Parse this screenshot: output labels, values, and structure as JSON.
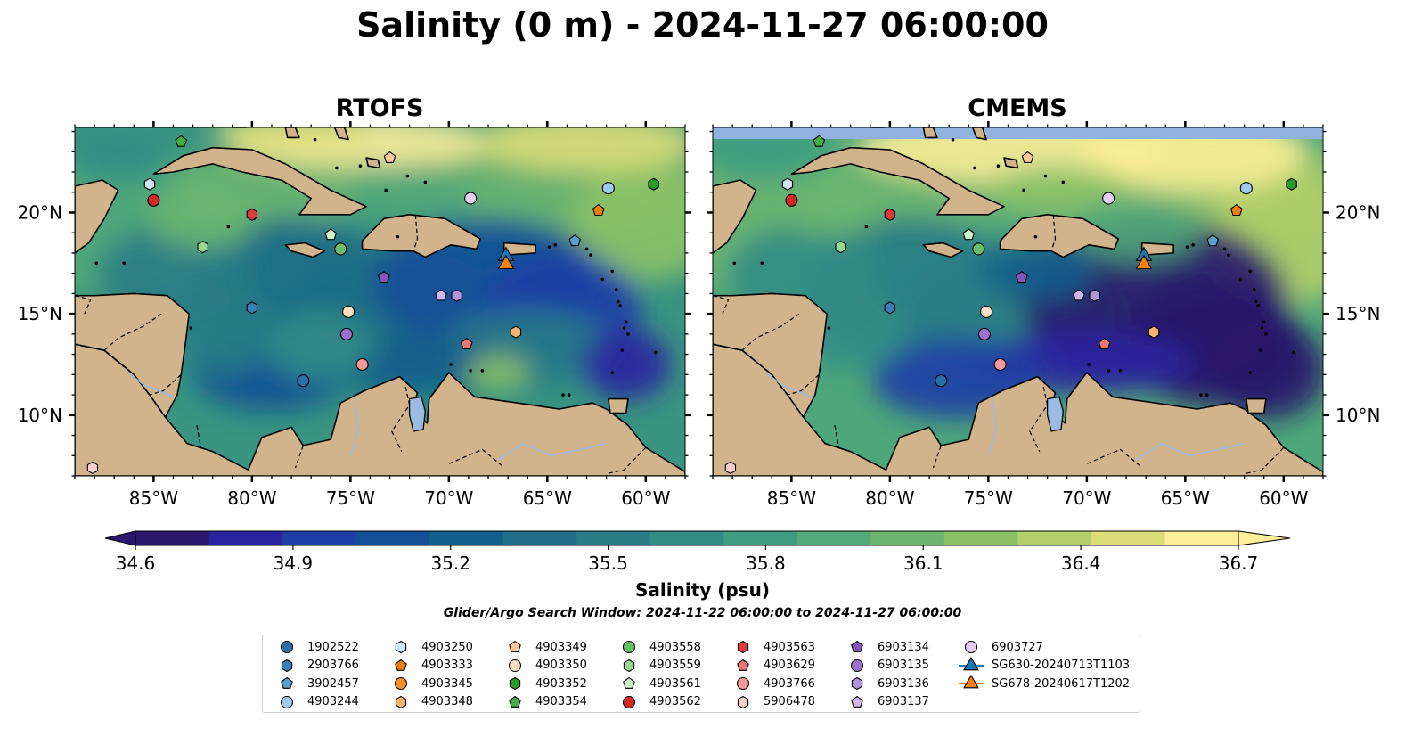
{
  "title": "Salinity (0 m) - 2024-11-27 06:00:00",
  "panels": [
    {
      "name": "RTOFS",
      "mode": "rtofs"
    },
    {
      "name": "CMEMS",
      "mode": "cmems"
    }
  ],
  "longitude_ticks": [
    "85°W",
    "80°W",
    "75°W",
    "70°W",
    "65°W",
    "60°W"
  ],
  "longitude_tick_values": [
    -85,
    -80,
    -75,
    -70,
    -65,
    -60
  ],
  "latitude_ticks": [
    "20°N",
    "15°N",
    "10°N"
  ],
  "latitude_tick_values": [
    20,
    15,
    10
  ],
  "map_extent": {
    "lon": [
      -89,
      -58
    ],
    "lat": [
      7,
      24.2
    ]
  },
  "colorbar": {
    "label": "Salinity (psu)",
    "ticks": [
      "34.6",
      "34.9",
      "35.2",
      "35.5",
      "35.8",
      "36.1",
      "36.4",
      "36.7"
    ],
    "range": [
      34.6,
      36.7
    ],
    "extend": "both",
    "colormap": "haline",
    "colors": [
      "#29186b",
      "#2a23a0",
      "#1f3fa6",
      "#124f97",
      "#135f8b",
      "#1f6d86",
      "#2a7c86",
      "#338c85",
      "#3e9c81",
      "#52a979",
      "#6cb56f",
      "#8cc266",
      "#b2cf6a",
      "#dcdd78",
      "#fdee99"
    ]
  },
  "search_window": "Glider/Argo Search Window: 2024-11-22 06:00:00 to 2024-11-27 06:00:00",
  "land_color": "#d2b48c",
  "legend": [
    {
      "label": "1902522",
      "marker": "circle",
      "color": "#2a6fa8"
    },
    {
      "label": "2903766",
      "marker": "hexagon",
      "color": "#3a7fb8"
    },
    {
      "label": "3902457",
      "marker": "pentagon",
      "color": "#5a9fd0"
    },
    {
      "label": "4903244",
      "marker": "circle",
      "color": "#9ec9ea"
    },
    {
      "label": "4903250",
      "marker": "hexagon",
      "color": "#cfe5f6"
    },
    {
      "label": "4903333",
      "marker": "pentagon",
      "color": "#f07f00"
    },
    {
      "label": "4903345",
      "marker": "circle",
      "color": "#f58f2c"
    },
    {
      "label": "4903348",
      "marker": "hexagon",
      "color": "#f9b56d"
    },
    {
      "label": "4903349",
      "marker": "pentagon",
      "color": "#fbc99a"
    },
    {
      "label": "4903350",
      "marker": "circle",
      "color": "#fde0bf"
    },
    {
      "label": "4903352",
      "marker": "hexagon",
      "color": "#2a9a2a"
    },
    {
      "label": "4903354",
      "marker": "pentagon",
      "color": "#45ad45"
    },
    {
      "label": "4903558",
      "marker": "circle",
      "color": "#68c168"
    },
    {
      "label": "4903559",
      "marker": "hexagon",
      "color": "#97d991"
    },
    {
      "label": "4903561",
      "marker": "pentagon",
      "color": "#cff3c9"
    },
    {
      "label": "4903562",
      "marker": "circle",
      "color": "#d62728"
    },
    {
      "label": "4903563",
      "marker": "hexagon",
      "color": "#e03b3c"
    },
    {
      "label": "4903629",
      "marker": "pentagon",
      "color": "#ef7474"
    },
    {
      "label": "4903766",
      "marker": "circle",
      "color": "#f29a98"
    },
    {
      "label": "5906478",
      "marker": "hexagon",
      "color": "#fbcfcc"
    },
    {
      "label": "6903134",
      "marker": "pentagon",
      "color": "#8a55b8"
    },
    {
      "label": "6903135",
      "marker": "circle",
      "color": "#9e71cb"
    },
    {
      "label": "6903136",
      "marker": "hexagon",
      "color": "#b592dc"
    },
    {
      "label": "6903137",
      "marker": "pentagon",
      "color": "#cfb6ec"
    },
    {
      "label": "6903727",
      "marker": "circle",
      "color": "#e3cdf5"
    },
    {
      "label": "SG630-20240713T1103",
      "marker": "triangle-line",
      "color": "#1f77b4"
    },
    {
      "label": "SG678-20240617T1202",
      "marker": "triangle-line",
      "color": "#ff7f0e"
    }
  ],
  "floats": [
    {
      "id": "4903354",
      "lon": -83.6,
      "lat": 23.5
    },
    {
      "id": "4903349",
      "lon": -73.0,
      "lat": 22.7
    },
    {
      "id": "4903250",
      "lon": -85.2,
      "lat": 21.4
    },
    {
      "id": "4903562",
      "lon": -85.0,
      "lat": 20.6
    },
    {
      "id": "4903563",
      "lon": -80.0,
      "lat": 19.9
    },
    {
      "id": "6903727",
      "lon": -68.9,
      "lat": 20.7
    },
    {
      "id": "4903244",
      "lon": -61.9,
      "lat": 21.2
    },
    {
      "id": "4903352",
      "lon": -59.6,
      "lat": 21.4
    },
    {
      "id": "4903333",
      "lon": -62.4,
      "lat": 20.1
    },
    {
      "id": "4903561",
      "lon": -76.0,
      "lat": 18.9
    },
    {
      "id": "4903559",
      "lon": -82.5,
      "lat": 18.3
    },
    {
      "id": "4903558",
      "lon": -75.5,
      "lat": 18.2
    },
    {
      "id": "3902457",
      "lon": -63.6,
      "lat": 18.6
    },
    {
      "id": "6903134",
      "lon": -73.3,
      "lat": 16.8
    },
    {
      "id": "6903137",
      "lon": -70.4,
      "lat": 15.9
    },
    {
      "id": "6903136",
      "lon": -69.6,
      "lat": 15.9
    },
    {
      "id": "2903766",
      "lon": -80.0,
      "lat": 15.3
    },
    {
      "id": "4903350",
      "lon": -75.1,
      "lat": 15.1
    },
    {
      "id": "6903135",
      "lon": -75.2,
      "lat": 14.0
    },
    {
      "id": "4903348",
      "lon": -66.6,
      "lat": 14.1
    },
    {
      "id": "4903629",
      "lon": -69.1,
      "lat": 13.5
    },
    {
      "id": "4903766",
      "lon": -74.4,
      "lat": 12.5
    },
    {
      "id": "1902522",
      "lon": -77.4,
      "lat": 11.7
    },
    {
      "id": "5906478",
      "lon": -88.1,
      "lat": 7.4
    }
  ],
  "gliders": [
    {
      "id": "SG630-20240713T1103",
      "lon": -67.1,
      "lat": 17.9
    },
    {
      "id": "SG678-20240617T1202",
      "lon": -67.1,
      "lat": 17.5
    }
  ]
}
